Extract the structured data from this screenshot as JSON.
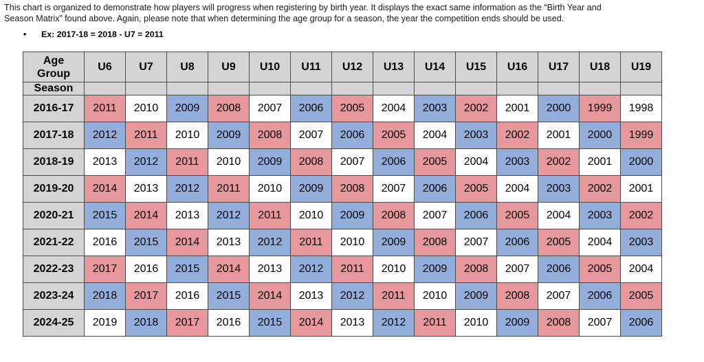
{
  "intro": {
    "line1": "This chart is organized to demonstrate how players will progress when registering by birth year.  It displays the exact same information as the “Birth Year and",
    "line2": "Season Matrix” found above.  Again, please note that when determining the age group for a season, the year the competition ends should be used.",
    "bullet_symbol": "•",
    "example": "Ex: 2017-18 = 2018 - U7 = 2011"
  },
  "table": {
    "corner_line1": "Age",
    "corner_line2": "Group",
    "season_label": "Season",
    "age_groups": [
      "U6",
      "U7",
      "U8",
      "U9",
      "U10",
      "U11",
      "U12",
      "U13",
      "U14",
      "U15",
      "U16",
      "U17",
      "U18",
      "U19"
    ],
    "rows": [
      {
        "season": "2016-17",
        "years": [
          "2011",
          "2010",
          "2009",
          "2008",
          "2007",
          "2006",
          "2005",
          "2004",
          "2003",
          "2002",
          "2001",
          "2000",
          "1999",
          "1998"
        ]
      },
      {
        "season": "2017-18",
        "years": [
          "2012",
          "2011",
          "2010",
          "2009",
          "2008",
          "2007",
          "2006",
          "2005",
          "2004",
          "2003",
          "2002",
          "2001",
          "2000",
          "1999"
        ]
      },
      {
        "season": "2018-19",
        "years": [
          "2013",
          "2012",
          "2011",
          "2010",
          "2009",
          "2008",
          "2007",
          "2006",
          "2005",
          "2004",
          "2003",
          "2002",
          "2001",
          "2000"
        ]
      },
      {
        "season": "2019-20",
        "years": [
          "2014",
          "2013",
          "2012",
          "2011",
          "2010",
          "2009",
          "2008",
          "2007",
          "2006",
          "2005",
          "2004",
          "2003",
          "2002",
          "2001"
        ]
      },
      {
        "season": "2020-21",
        "years": [
          "2015",
          "2014",
          "2013",
          "2012",
          "2011",
          "2010",
          "2009",
          "2008",
          "2007",
          "2006",
          "2005",
          "2004",
          "2003",
          "2002"
        ]
      },
      {
        "season": "2021-22",
        "years": [
          "2016",
          "2015",
          "2014",
          "2013",
          "2012",
          "2011",
          "2010",
          "2009",
          "2008",
          "2007",
          "2006",
          "2005",
          "2004",
          "2003"
        ]
      },
      {
        "season": "2022-23",
        "years": [
          "2017",
          "2016",
          "2015",
          "2014",
          "2013",
          "2012",
          "2011",
          "2010",
          "2009",
          "2008",
          "2007",
          "2006",
          "2005",
          "2004"
        ]
      },
      {
        "season": "2023-24",
        "years": [
          "2018",
          "2017",
          "2016",
          "2015",
          "2014",
          "2013",
          "2012",
          "2011",
          "2010",
          "2009",
          "2008",
          "2007",
          "2006",
          "2005"
        ]
      },
      {
        "season": "2024-25",
        "years": [
          "2019",
          "2018",
          "2017",
          "2016",
          "2015",
          "2014",
          "2013",
          "2012",
          "2011",
          "2010",
          "2009",
          "2008",
          "2007",
          "2006"
        ]
      }
    ],
    "year_colors": {
      "1998": "white",
      "1999": "red",
      "2000": "blue",
      "2001": "white",
      "2002": "red",
      "2003": "blue",
      "2004": "white",
      "2005": "red",
      "2006": "blue",
      "2007": "white",
      "2008": "red",
      "2009": "blue",
      "2010": "white",
      "2011": "red",
      "2012": "blue",
      "2013": "white",
      "2014": "red",
      "2015": "blue",
      "2016": "white",
      "2017": "red",
      "2018": "blue",
      "2019": "white"
    },
    "palette": {
      "red": "#e6989c",
      "blue": "#93aedb",
      "white": "#ffffff",
      "header": "#d4d4d4"
    }
  }
}
